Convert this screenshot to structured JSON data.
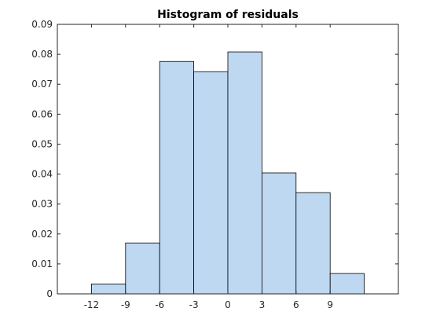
{
  "chart_data": {
    "type": "bar",
    "title": "Histogram of residuals",
    "xlabel": "",
    "ylabel": "",
    "bins": [
      {
        "from": -12,
        "to": -9,
        "value": 0.0033
      },
      {
        "from": -9,
        "to": -6,
        "value": 0.017
      },
      {
        "from": -6,
        "to": -3,
        "value": 0.0776
      },
      {
        "from": -3,
        "to": 0,
        "value": 0.0742
      },
      {
        "from": 0,
        "to": 3,
        "value": 0.0808
      },
      {
        "from": 3,
        "to": 6,
        "value": 0.0404
      },
      {
        "from": 6,
        "to": 9,
        "value": 0.0338
      },
      {
        "from": 9,
        "to": 12,
        "value": 0.0068
      }
    ],
    "xlim": [
      -15,
      15
    ],
    "ylim": [
      0,
      0.09
    ],
    "xticks": [
      "-12",
      "-9",
      "-6",
      "-3",
      "0",
      "3",
      "6",
      "9"
    ],
    "xtick_values": [
      -12,
      -9,
      -6,
      -3,
      0,
      3,
      6,
      9
    ],
    "yticks": [
      "0",
      "0.01",
      "0.02",
      "0.03",
      "0.04",
      "0.05",
      "0.06",
      "0.07",
      "0.08",
      "0.09"
    ],
    "ytick_values": [
      0,
      0.01,
      0.02,
      0.03,
      0.04,
      0.05,
      0.06,
      0.07,
      0.08,
      0.09
    ],
    "bar_color": "#bfd8f2",
    "edge_color": "#000000",
    "grid": false
  }
}
